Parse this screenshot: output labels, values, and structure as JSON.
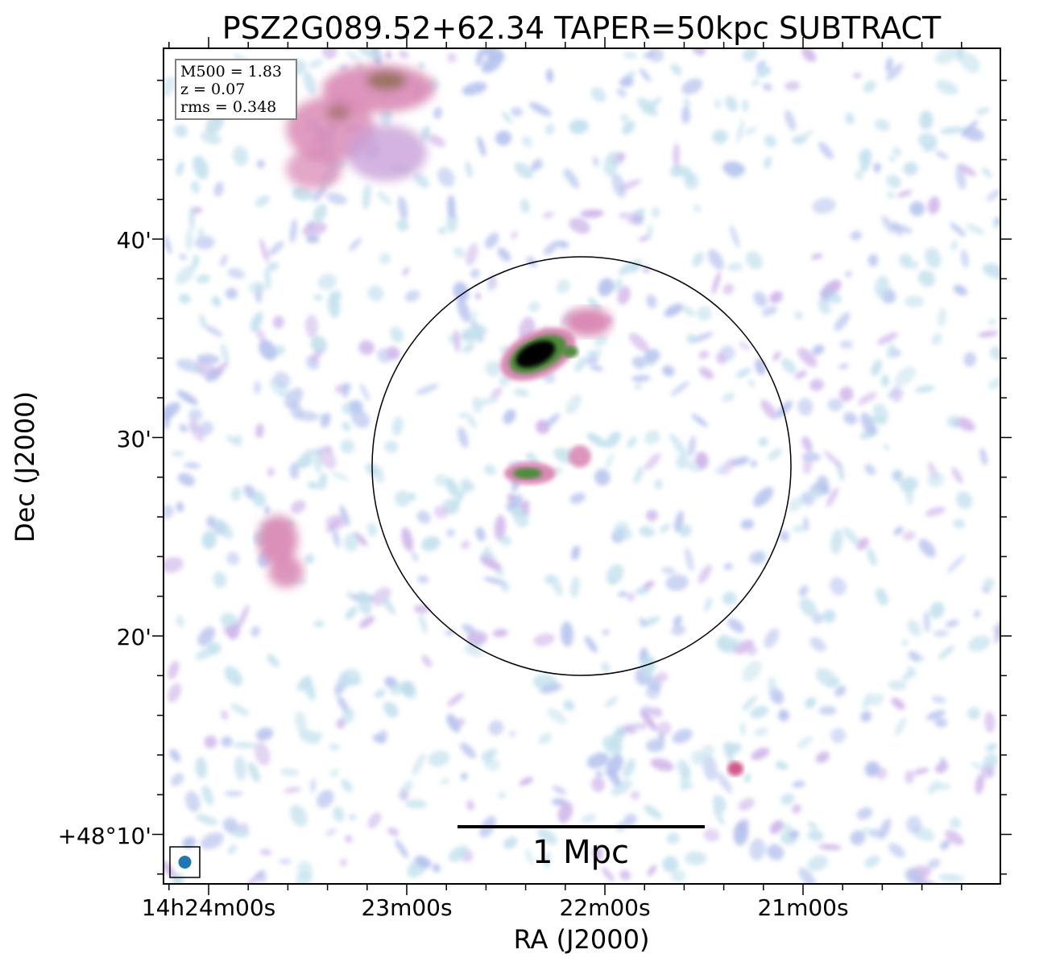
{
  "title": "PSZ2G089.52+62.34 TAPER=50kpc SUBTRACT",
  "info_box": {
    "line1": "M500 = 1.83",
    "line2": "z = 0.07",
    "line3": "rms = 0.348"
  },
  "axes": {
    "xlabel": "RA (J2000)",
    "ylabel": "Dec (J2000)",
    "x_ticks": [
      "14h24m00s",
      "23m00s",
      "22m00s",
      "21m00s"
    ],
    "y_ticks": [
      "40'",
      "30'",
      "20'",
      "+48°10'"
    ]
  },
  "scale_bar": {
    "label": "1 Mpc"
  },
  "colors": {
    "background": "#ffffff",
    "noise_light": "#b9dcea",
    "noise_blue": "#a9b8ea",
    "emission_pink": "#d98ab5",
    "emission_green": "#4e8c3a",
    "core": "#000000",
    "beam": "#1f77b4"
  }
}
